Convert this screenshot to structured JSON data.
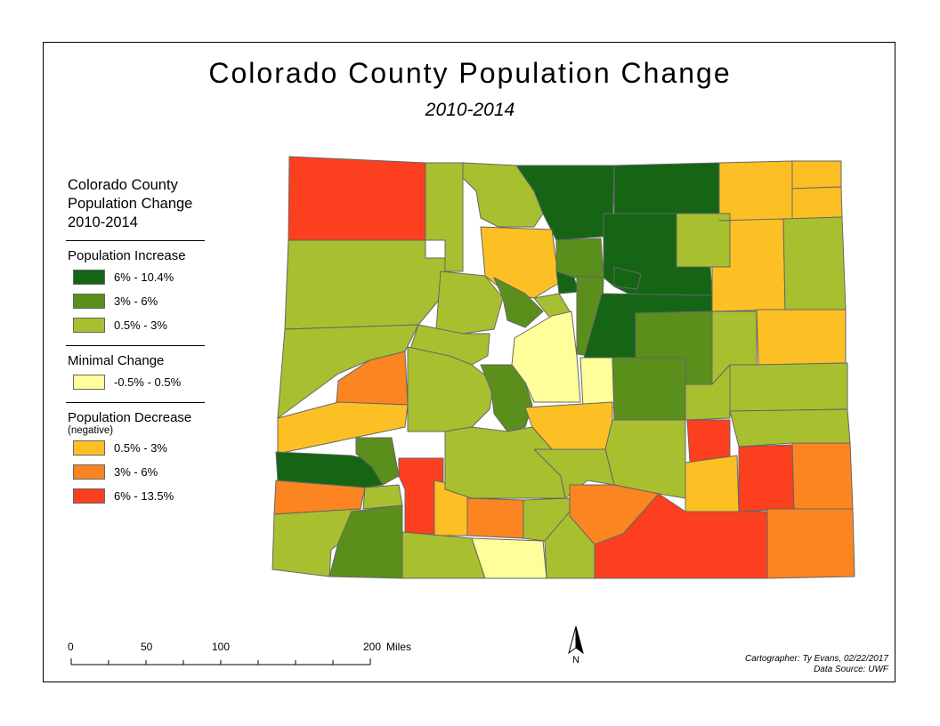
{
  "map": {
    "title": "Colorado County Population Change",
    "subtitle": "2010-2014"
  },
  "legend": {
    "title_lines": [
      "Colorado County",
      "Population Change",
      "2010-2014"
    ],
    "increase": {
      "heading": "Population Increase",
      "items": [
        {
          "label": "6% - 10.4%",
          "color": "#156515"
        },
        {
          "label": "3% - 6%",
          "color": "#5a8f1c"
        },
        {
          "label": "0.5% - 3%",
          "color": "#a8c030"
        }
      ]
    },
    "minimal": {
      "heading": "Minimal Change",
      "items": [
        {
          "label": "-0.5% - 0.5%",
          "color": "#fefe9a"
        }
      ]
    },
    "decrease": {
      "heading": "Population Decrease",
      "note": "(negative)",
      "items": [
        {
          "label": "0.5% - 3%",
          "color": "#fcc024"
        },
        {
          "label": "3% - 6%",
          "color": "#fb8520"
        },
        {
          "label": "6% - 13.5%",
          "color": "#fc3f1e"
        }
      ]
    }
  },
  "scale": {
    "labels": [
      "0",
      "50",
      "100",
      "200"
    ],
    "unit": "Miles"
  },
  "north_arrow": {
    "label": "N",
    "icon": "north-arrow-icon"
  },
  "credits": {
    "cartographer": "Cartographer: Ty Evans, 02/22/2017",
    "source": "Data Source: UWF"
  }
}
